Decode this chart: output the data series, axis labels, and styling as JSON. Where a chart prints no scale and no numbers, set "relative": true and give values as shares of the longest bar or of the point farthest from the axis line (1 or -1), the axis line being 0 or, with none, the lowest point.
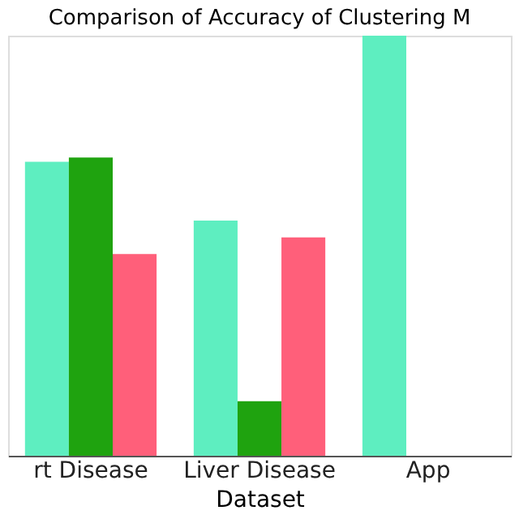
{
  "chart_data": {
    "type": "bar",
    "title": "Comparison of Accuracy of Clustering M",
    "xlabel": "Dataset",
    "categories": [
      "rt Disease",
      "Liver Disease",
      "App"
    ],
    "relative": true,
    "series": [
      {
        "color": "#5eeec0",
        "values": [
          0.7,
          0.56,
          1.0
        ]
      },
      {
        "color": "#1fa30f",
        "values": [
          0.71,
          0.13,
          null
        ]
      },
      {
        "color": "#ff5f7a",
        "values": [
          0.48,
          0.52,
          null
        ]
      }
    ],
    "grid": false
  }
}
